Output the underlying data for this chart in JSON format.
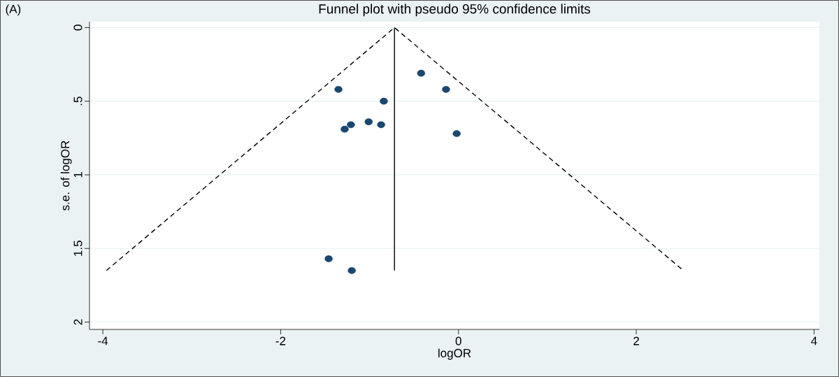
{
  "chart_data": {
    "type": "scatter",
    "title": "Funnel plot with pseudo 95% confidence limits",
    "xlabel": "logOR",
    "ylabel": "s.e. of logOR",
    "annotations": [
      "(A)"
    ],
    "series": [
      {
        "color": "#1a476f",
        "marker": "circle",
        "x": [
          -0.42,
          -0.14,
          -1.35,
          -0.84,
          -1.01,
          -1.21,
          -0.87,
          -1.28,
          -0.02,
          -1.46,
          -1.2
        ],
        "values": [
          0.31,
          0.42,
          0.42,
          0.5,
          0.64,
          0.66,
          0.66,
          0.69,
          0.72,
          1.57,
          1.65
        ]
      },
      {
        "type": "line",
        "color": "#000000",
        "line_style": "solid",
        "marker": "none",
        "x": [
          -0.72,
          -0.72
        ],
        "values": [
          0,
          1.65
        ]
      },
      {
        "type": "line",
        "color": "#000000",
        "line_style": "dashed",
        "marker": "none",
        "x": [
          -3.96,
          -0.72,
          2.53
        ],
        "values": [
          1.65,
          0,
          1.65
        ]
      }
    ],
    "xlim": [
      -4.15,
      4.06
    ],
    "ylim": [
      2.05,
      -0.04
    ],
    "xticks": [
      -4,
      -2,
      0,
      2,
      4
    ],
    "yticks": [
      {
        "value": 0,
        "label": "0"
      },
      {
        "value": 0.5,
        "label": ".5"
      },
      {
        "value": 1,
        "label": "1"
      },
      {
        "value": 1.5,
        "label": "1.5"
      },
      {
        "value": 2,
        "label": "2"
      }
    ],
    "grid": "y"
  }
}
